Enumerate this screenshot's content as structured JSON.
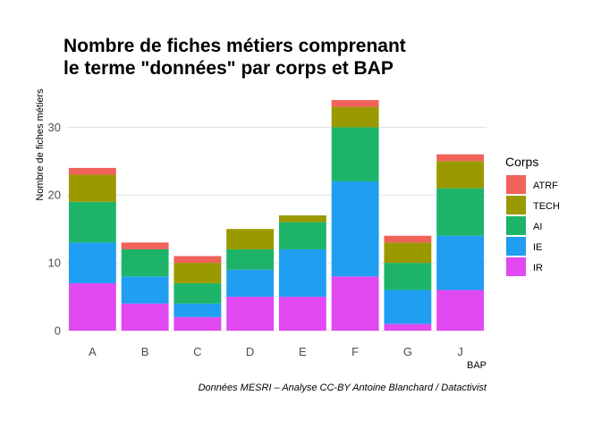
{
  "chart_data": {
    "type": "bar",
    "stacked": true,
    "title_lines": [
      "Nombre de fiches métiers comprenant",
      "le terme \"données\" par corps et BAP"
    ],
    "xlabel": "BAP",
    "ylabel": "Nombre de fiches métiers",
    "caption": "Données MESRI – Analyse CC-BY Antoine Blanchard / Datactivist",
    "categories": [
      "A",
      "B",
      "C",
      "D",
      "E",
      "F",
      "G",
      "J"
    ],
    "ylim": [
      0,
      34
    ],
    "yticks": [
      0,
      10,
      20,
      30
    ],
    "grid": true,
    "legend_title": "Corps",
    "legend_placement": "right",
    "series": [
      {
        "name": "IR",
        "color": "#E04AF0",
        "values": [
          7,
          4,
          2,
          5,
          5,
          8,
          1,
          6
        ]
      },
      {
        "name": "IE",
        "color": "#1F9EF2",
        "values": [
          6,
          4,
          2,
          4,
          7,
          14,
          5,
          8
        ]
      },
      {
        "name": "AI",
        "color": "#1DB46A",
        "values": [
          6,
          4,
          3,
          3,
          4,
          8,
          4,
          7
        ]
      },
      {
        "name": "TECH",
        "color": "#9A9A00",
        "values": [
          4,
          0,
          3,
          3,
          1,
          3,
          3,
          4
        ]
      },
      {
        "name": "ATRF",
        "color": "#F0625A",
        "values": [
          1,
          1,
          1,
          0,
          0,
          1,
          1,
          1
        ]
      }
    ],
    "legend_order": [
      "ATRF",
      "TECH",
      "AI",
      "IE",
      "IR"
    ]
  }
}
